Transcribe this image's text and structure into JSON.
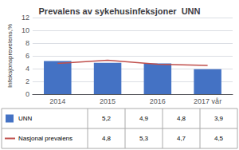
{
  "chart_data": {
    "type": "bar",
    "title": "Prevalens av sykehusinfeksjoner  UNN",
    "ylabel": "Infeksjonsprevelens,%",
    "categories": [
      "2014",
      "2015",
      "2016",
      "2017 vår"
    ],
    "series": [
      {
        "name": "UNN",
        "type": "bar",
        "color": "#4472C4",
        "values": [
          5.2,
          4.9,
          4.8,
          3.9
        ],
        "value_labels": [
          "5,2",
          "4,9",
          "4,8",
          "3,9"
        ]
      },
      {
        "name": "Nasjonal prevalens",
        "type": "line",
        "color": "#C0504D",
        "values": [
          4.8,
          5.3,
          4.7,
          4.5
        ],
        "value_labels": [
          "4,8",
          "5,3",
          "4,7",
          "4,5"
        ]
      }
    ],
    "ylim": [
      0,
      12
    ],
    "yticks": [
      0,
      2,
      4,
      6,
      8,
      10,
      12
    ],
    "grid": true
  }
}
